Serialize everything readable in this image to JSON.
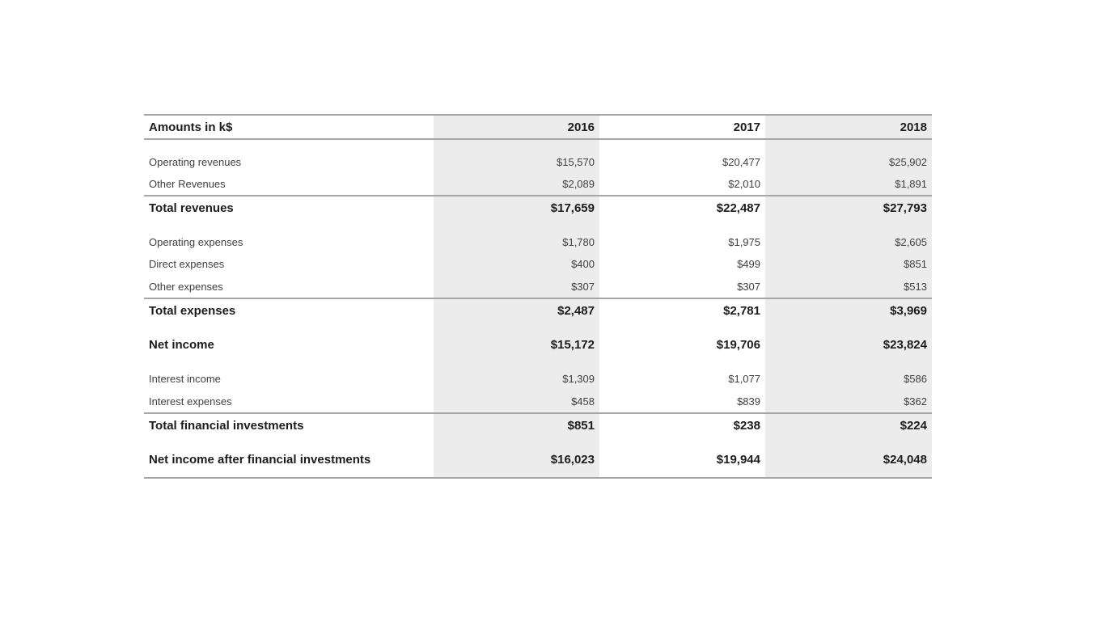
{
  "table": {
    "corner_label": "Amounts in k$",
    "col_headers": [
      "2016",
      "2017",
      "2018"
    ],
    "rows": [
      {
        "label": "Operating revenues",
        "values": [
          "$15,570",
          "$20,477",
          "$25,902"
        ]
      },
      {
        "label": "Other Revenues",
        "values": [
          "$2,089",
          "$2,010",
          "$1,891"
        ]
      },
      {
        "label": "Total revenues",
        "values": [
          "$17,659",
          "$22,487",
          "$27,793"
        ]
      },
      {
        "label": "Operating expenses",
        "values": [
          "$1,780",
          "$1,975",
          "$2,605"
        ]
      },
      {
        "label": "Direct expenses",
        "values": [
          "$400",
          "$499",
          "$851"
        ]
      },
      {
        "label": "Other expenses",
        "values": [
          "$307",
          "$307",
          "$513"
        ]
      },
      {
        "label": "Total expenses",
        "values": [
          "$2,487",
          "$2,781",
          "$3,969"
        ]
      },
      {
        "label": "Net income",
        "values": [
          "$15,172",
          "$19,706",
          "$23,824"
        ]
      },
      {
        "label": "Interest income",
        "values": [
          "$1,309",
          "$1,077",
          "$586"
        ]
      },
      {
        "label": "Interest expenses",
        "values": [
          "$458",
          "$839",
          "$362"
        ]
      },
      {
        "label": "Total financial investments",
        "values": [
          "$851",
          "$238",
          "$224"
        ]
      },
      {
        "label": "Net income after financial investments",
        "values": [
          "$16,023",
          "$19,944",
          "$24,048"
        ]
      }
    ],
    "colors": {
      "column_shade": "#ececec",
      "gridline": "#a6a6a6",
      "text_regular": "#3f3f3f",
      "text_emphasis": "#1c1c1c",
      "background": "#ffffff"
    }
  },
  "chart_data": {
    "type": "table",
    "title": "Amounts in k$",
    "columns": [
      "2016",
      "2017",
      "2018"
    ],
    "unit": "k$",
    "rows": [
      {
        "label": "Operating revenues",
        "values": [
          15570,
          20477,
          25902
        ],
        "emphasis": false
      },
      {
        "label": "Other Revenues",
        "values": [
          2089,
          2010,
          1891
        ],
        "emphasis": false
      },
      {
        "label": "Total revenues",
        "values": [
          17659,
          22487,
          27793
        ],
        "emphasis": true
      },
      {
        "label": "Operating expenses",
        "values": [
          1780,
          1975,
          2605
        ],
        "emphasis": false
      },
      {
        "label": "Direct expenses",
        "values": [
          400,
          499,
          851
        ],
        "emphasis": false
      },
      {
        "label": "Other expenses",
        "values": [
          307,
          307,
          513
        ],
        "emphasis": false
      },
      {
        "label": "Total expenses",
        "values": [
          2487,
          2781,
          3969
        ],
        "emphasis": true
      },
      {
        "label": "Net income",
        "values": [
          15172,
          19706,
          23824
        ],
        "emphasis": true
      },
      {
        "label": "Interest income",
        "values": [
          1309,
          1077,
          586
        ],
        "emphasis": false
      },
      {
        "label": "Interest expenses",
        "values": [
          458,
          839,
          362
        ],
        "emphasis": false
      },
      {
        "label": "Total financial investments",
        "values": [
          851,
          238,
          224
        ],
        "emphasis": true
      },
      {
        "label": "Net income after financial investments",
        "values": [
          16023,
          19944,
          24048
        ],
        "emphasis": true
      }
    ],
    "layout": {
      "shaded_columns": [
        "2016",
        "2018"
      ],
      "grid": "horizontal-section-rules",
      "value_alignment": "right"
    }
  }
}
